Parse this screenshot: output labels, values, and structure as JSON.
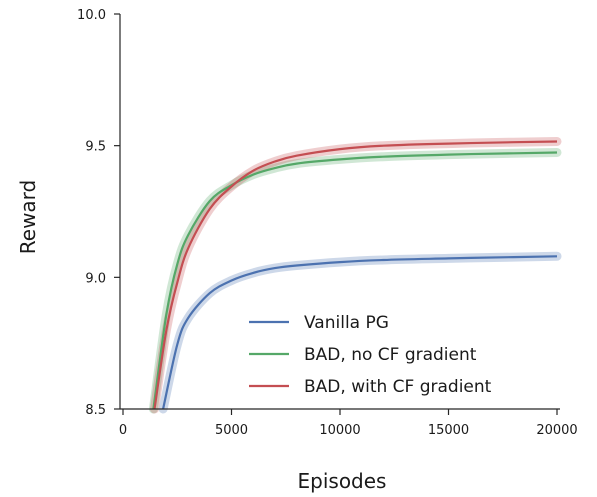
{
  "chart_data": {
    "type": "line",
    "title": "",
    "xlabel": "Episodes",
    "ylabel": "Reward",
    "xlim": [
      0,
      20000
    ],
    "ylim": [
      8.5,
      10.0
    ],
    "xticks": [
      0,
      5000,
      10000,
      15000,
      20000
    ],
    "xtick_labels": [
      "0",
      "5000",
      "10000",
      "15000",
      "20000"
    ],
    "yticks": [
      8.5,
      9.0,
      9.5,
      10.0
    ],
    "ytick_labels": [
      "8.5",
      "9.0",
      "9.5",
      "10.0"
    ],
    "grid": false,
    "legend_position": "lower-right",
    "series": [
      {
        "name": "Vanilla PG",
        "color": "#4c72b0",
        "x": [
          1850,
          2500,
          3000,
          4000,
          5000,
          6000,
          7000,
          8000,
          10000,
          12000,
          15000,
          18000,
          20000
        ],
        "y": [
          8.5,
          8.745,
          8.845,
          8.94,
          8.988,
          9.017,
          9.035,
          9.045,
          9.058,
          9.066,
          9.072,
          9.077,
          9.08
        ]
      },
      {
        "name": "BAD, no CF gradient",
        "color": "#55a868",
        "x": [
          1400,
          2000,
          2500,
          3000,
          4000,
          5000,
          6000,
          7000,
          8000,
          10000,
          12000,
          15000,
          18000,
          20000
        ],
        "y": [
          8.5,
          8.86,
          9.05,
          9.16,
          9.29,
          9.35,
          9.39,
          9.415,
          9.432,
          9.448,
          9.458,
          9.466,
          9.471,
          9.474
        ]
      },
      {
        "name": "BAD, with CF gradient",
        "color": "#c44e52",
        "x": [
          1450,
          2000,
          2500,
          3000,
          4000,
          5000,
          6000,
          7000,
          8000,
          10000,
          12000,
          15000,
          18000,
          20000
        ],
        "y": [
          8.5,
          8.8,
          8.98,
          9.11,
          9.26,
          9.345,
          9.405,
          9.44,
          9.462,
          9.487,
          9.5,
          9.508,
          9.513,
          9.516
        ]
      }
    ]
  }
}
